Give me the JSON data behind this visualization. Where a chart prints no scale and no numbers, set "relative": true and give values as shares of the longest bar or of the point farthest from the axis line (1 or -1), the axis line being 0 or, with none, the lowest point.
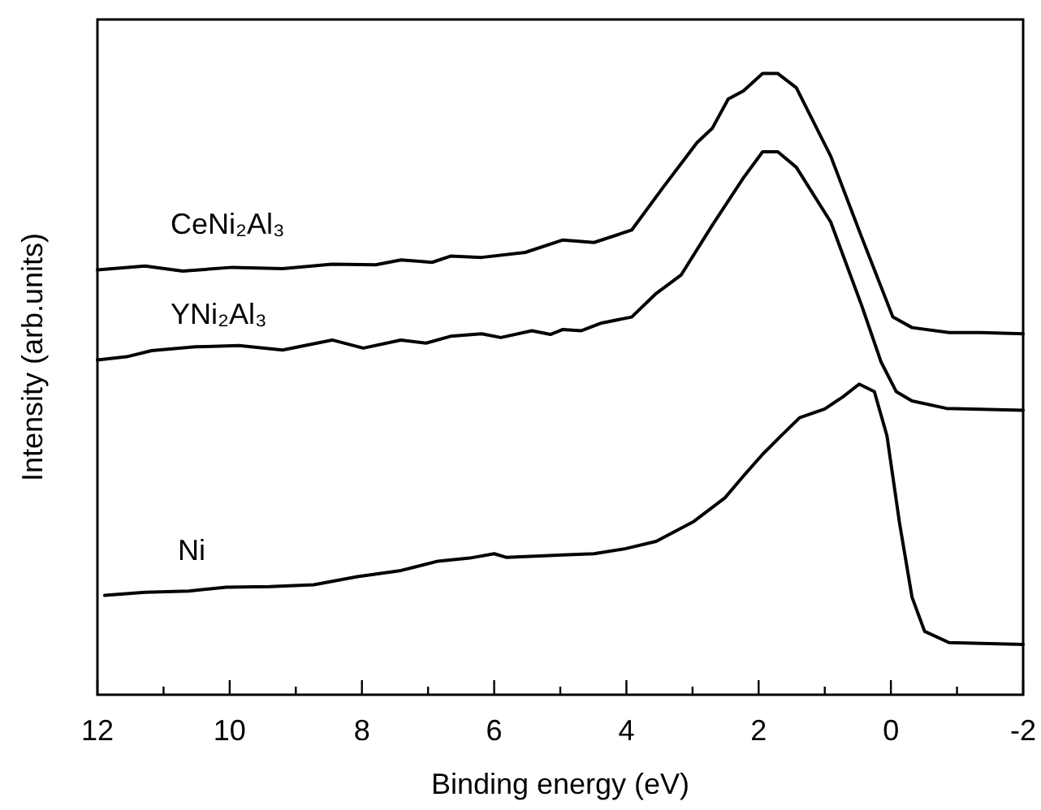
{
  "chart_data": {
    "type": "line",
    "xlabel": "Binding energy (eV)",
    "ylabel": "Intensity (arb.units)",
    "relative": true,
    "xlim": [
      12,
      -2
    ],
    "xticks": [
      12,
      {
        "value": 11,
        "label": null
      },
      10,
      {
        "value": 9,
        "label": null
      },
      8,
      {
        "value": 7,
        "label": null
      },
      6,
      {
        "value": 5,
        "label": null
      },
      4,
      {
        "value": 3,
        "label": null
      },
      2,
      {
        "value": 1,
        "label": null
      },
      0,
      {
        "value": -1,
        "label": null
      },
      -2
    ],
    "grid": false,
    "marker": "none",
    "line_style": "solid",
    "series": [
      {
        "name": "CeNi₂Al₃",
        "color": "#000000",
        "x": [
          12,
          11.28,
          10.71,
          9.96,
          9.2,
          8.45,
          7.79,
          7.41,
          6.94,
          6.66,
          6.19,
          5.53,
          4.96,
          4.49,
          3.92,
          3.45,
          2.93,
          2.7,
          2.46,
          2.23,
          1.94,
          1.71,
          1.43,
          0.91,
          0.44,
          -0.03,
          -0.32,
          -0.88,
          -1.36,
          -2
        ],
        "values": [
          0.684,
          0.69,
          0.682,
          0.688,
          0.686,
          0.693,
          0.692,
          0.7,
          0.696,
          0.706,
          0.704,
          0.712,
          0.732,
          0.728,
          0.748,
          0.816,
          0.889,
          0.912,
          0.959,
          0.972,
          1,
          1,
          0.977,
          0.867,
          0.736,
          0.608,
          0.591,
          0.583,
          0.583,
          0.581
        ]
      },
      {
        "name": "YNi₂Al₃",
        "color": "#000000",
        "x": [
          12,
          11.56,
          11.18,
          10.52,
          9.86,
          9.2,
          8.45,
          7.98,
          7.41,
          7.03,
          6.66,
          6.19,
          5.9,
          5.43,
          5.15,
          4.96,
          4.68,
          4.39,
          3.92,
          3.55,
          3.17,
          2.7,
          2.23,
          1.94,
          1.71,
          1.43,
          0.91,
          0.44,
          0.15,
          -0.08,
          -0.32,
          -0.84,
          -2
        ],
        "values": [
          0.539,
          0.544,
          0.554,
          0.56,
          0.562,
          0.555,
          0.571,
          0.558,
          0.571,
          0.566,
          0.577,
          0.581,
          0.575,
          0.586,
          0.58,
          0.588,
          0.586,
          0.598,
          0.608,
          0.646,
          0.676,
          0.756,
          0.832,
          0.874,
          0.874,
          0.849,
          0.761,
          0.626,
          0.536,
          0.488,
          0.473,
          0.461,
          0.458
        ]
      },
      {
        "name": "Ni",
        "color": "#000000",
        "x": [
          11.89,
          11.28,
          10.62,
          10.05,
          9.39,
          8.73,
          8.07,
          7.41,
          6.85,
          6.37,
          6,
          5.81,
          4.96,
          4.49,
          4.02,
          3.55,
          2.98,
          2.51,
          2.23,
          1.94,
          1.66,
          1.38,
          1,
          0.72,
          0.48,
          0.25,
          0.06,
          -0.13,
          -0.32,
          -0.51,
          -0.88,
          -2
        ],
        "values": [
          0.16,
          0.165,
          0.167,
          0.173,
          0.174,
          0.177,
          0.19,
          0.2,
          0.215,
          0.22,
          0.227,
          0.221,
          0.225,
          0.227,
          0.235,
          0.247,
          0.279,
          0.317,
          0.352,
          0.387,
          0.417,
          0.446,
          0.46,
          0.48,
          0.5,
          0.488,
          0.417,
          0.277,
          0.157,
          0.102,
          0.084,
          0.081
        ]
      }
    ]
  }
}
